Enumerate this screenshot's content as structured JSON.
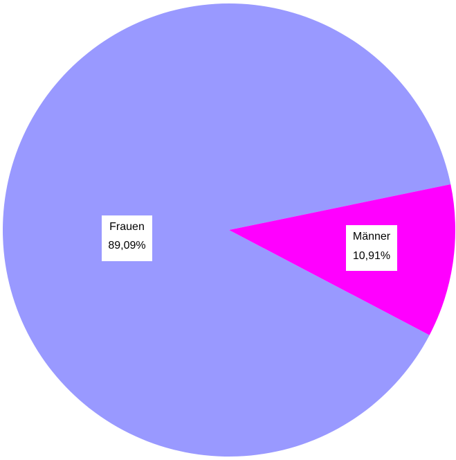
{
  "chart_data": {
    "type": "pie",
    "title": "",
    "slices": [
      {
        "label": "Frauen",
        "value": 89.09,
        "value_label": "89,09%",
        "color": "#9999ff"
      },
      {
        "label": "Männer",
        "value": 10.91,
        "value_label": "10,91%",
        "color": "#ff00ff"
      }
    ],
    "legend": "none"
  }
}
